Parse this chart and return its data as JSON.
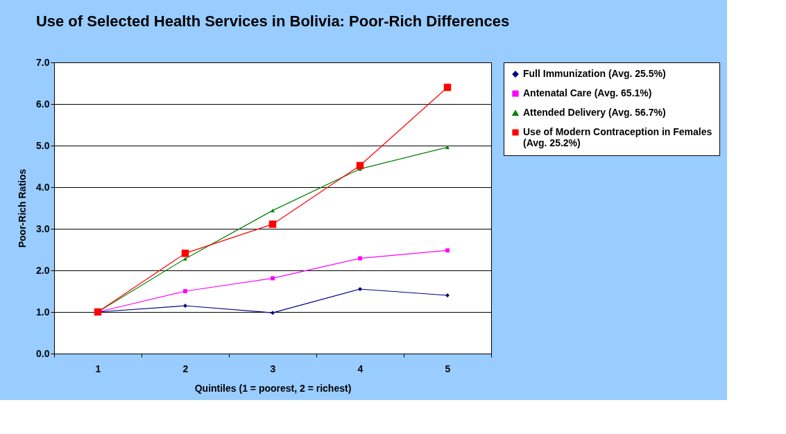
{
  "chart_data": {
    "type": "line",
    "title": "Use of Selected Health Services in Bolivia: Poor-Rich Differences",
    "xlabel": "Quintiles (1 = poorest, 2 = richest)",
    "ylabel": "Poor-Rich Ratios",
    "categories": [
      "1",
      "2",
      "3",
      "4",
      "5"
    ],
    "series": [
      {
        "name": "Full Immunization (Avg. 25.5%)",
        "color": "#000080",
        "marker": "diamond",
        "values": [
          1.0,
          1.15,
          0.98,
          1.55,
          1.4
        ]
      },
      {
        "name": "Antenatal Care (Avg. 65.1%)",
        "color": "#ff00ff",
        "marker": "square",
        "values": [
          1.0,
          1.5,
          1.81,
          2.29,
          2.48
        ]
      },
      {
        "name": "Attended Delivery (Avg. 56.7%)",
        "color": "#008000",
        "marker": "triangle",
        "values": [
          1.0,
          2.28,
          3.44,
          4.44,
          4.96
        ]
      },
      {
        "name": "Use of Modern Contraception in Females (Avg. 25.2%)",
        "color": "#ff0000",
        "marker": "square",
        "values": [
          1.0,
          2.41,
          3.11,
          4.52,
          6.4
        ]
      }
    ],
    "ylim": [
      0,
      7
    ],
    "yticks": [
      {
        "value": 0,
        "label": "0.0"
      },
      {
        "value": 1,
        "label": "1.0"
      },
      {
        "value": 2,
        "label": "2.0"
      },
      {
        "value": 3,
        "label": "3.0"
      },
      {
        "value": 4,
        "label": "4.0"
      },
      {
        "value": 5,
        "label": "5.0"
      },
      {
        "value": 6,
        "label": "6.0"
      },
      {
        "value": 7,
        "label": "7.0"
      }
    ],
    "grid": "y",
    "legend": "right"
  }
}
